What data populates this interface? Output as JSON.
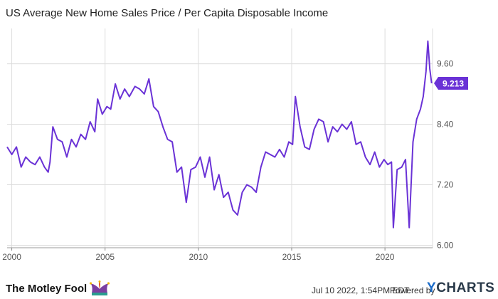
{
  "title": "US Average New Home Sales Price / Per Capita Disposable Income",
  "colors": {
    "line": "#6a32d6",
    "grid": "#dcdcdc",
    "badge": "#6a32d6",
    "brand_y": "#1a6bc9"
  },
  "footer": {
    "brand": "The Motley Fool",
    "brand_icon": "jester-hat-icon",
    "timestamp": "Jul 10 2022, 1:54PM EDT.",
    "powered_by": "Powered by",
    "ycharts_y": "Y",
    "ycharts_rest": "CHARTS"
  },
  "chart_data": {
    "type": "line",
    "title": "US Average New Home Sales Price / Per Capita Disposable Income",
    "xlabel": "",
    "ylabel": "",
    "xlim": [
      1999.75,
      2022.55
    ],
    "ylim": [
      5.95,
      10.3
    ],
    "yticks": [
      6.0,
      7.2,
      8.4,
      9.6
    ],
    "ytick_labels": [
      "6.00",
      "7.20",
      "8.40",
      "9.60"
    ],
    "xticks": [
      2000,
      2005,
      2010,
      2015,
      2020
    ],
    "xtick_labels": [
      "2000",
      "2005",
      "2010",
      "2015",
      "2020"
    ],
    "grid": true,
    "last_value_label": "9.213",
    "series": [
      {
        "points": [
          [
            1999.75,
            7.95
          ],
          [
            2000.0,
            7.8
          ],
          [
            2000.25,
            7.95
          ],
          [
            2000.5,
            7.55
          ],
          [
            2000.75,
            7.75
          ],
          [
            2001.0,
            7.65
          ],
          [
            2001.25,
            7.6
          ],
          [
            2001.5,
            7.75
          ],
          [
            2001.75,
            7.55
          ],
          [
            2001.95,
            7.45
          ],
          [
            2002.05,
            7.65
          ],
          [
            2002.2,
            8.35
          ],
          [
            2002.45,
            8.1
          ],
          [
            2002.7,
            8.05
          ],
          [
            2002.95,
            7.75
          ],
          [
            2003.2,
            8.1
          ],
          [
            2003.45,
            7.95
          ],
          [
            2003.7,
            8.2
          ],
          [
            2003.95,
            8.1
          ],
          [
            2004.2,
            8.45
          ],
          [
            2004.45,
            8.25
          ],
          [
            2004.6,
            8.9
          ],
          [
            2004.85,
            8.6
          ],
          [
            2005.1,
            8.75
          ],
          [
            2005.3,
            8.7
          ],
          [
            2005.55,
            9.2
          ],
          [
            2005.8,
            8.9
          ],
          [
            2006.05,
            9.1
          ],
          [
            2006.3,
            8.95
          ],
          [
            2006.6,
            9.15
          ],
          [
            2006.85,
            9.1
          ],
          [
            2007.1,
            9.0
          ],
          [
            2007.35,
            9.3
          ],
          [
            2007.6,
            8.75
          ],
          [
            2007.85,
            8.65
          ],
          [
            2008.1,
            8.35
          ],
          [
            2008.35,
            8.1
          ],
          [
            2008.6,
            8.05
          ],
          [
            2008.85,
            7.45
          ],
          [
            2009.1,
            7.55
          ],
          [
            2009.35,
            6.85
          ],
          [
            2009.6,
            7.5
          ],
          [
            2009.85,
            7.55
          ],
          [
            2010.1,
            7.75
          ],
          [
            2010.35,
            7.35
          ],
          [
            2010.6,
            7.75
          ],
          [
            2010.85,
            7.1
          ],
          [
            2011.1,
            7.4
          ],
          [
            2011.35,
            6.95
          ],
          [
            2011.6,
            7.05
          ],
          [
            2011.85,
            6.7
          ],
          [
            2012.1,
            6.6
          ],
          [
            2012.35,
            7.05
          ],
          [
            2012.6,
            7.2
          ],
          [
            2012.85,
            7.15
          ],
          [
            2013.1,
            7.05
          ],
          [
            2013.35,
            7.55
          ],
          [
            2013.6,
            7.85
          ],
          [
            2013.85,
            7.8
          ],
          [
            2014.1,
            7.75
          ],
          [
            2014.35,
            7.9
          ],
          [
            2014.6,
            7.75
          ],
          [
            2014.85,
            8.05
          ],
          [
            2015.05,
            8.0
          ],
          [
            2015.2,
            8.95
          ],
          [
            2015.45,
            8.35
          ],
          [
            2015.7,
            7.95
          ],
          [
            2015.95,
            7.9
          ],
          [
            2016.2,
            8.3
          ],
          [
            2016.45,
            8.5
          ],
          [
            2016.7,
            8.45
          ],
          [
            2016.95,
            8.05
          ],
          [
            2017.2,
            8.35
          ],
          [
            2017.45,
            8.25
          ],
          [
            2017.7,
            8.4
          ],
          [
            2017.95,
            8.3
          ],
          [
            2018.2,
            8.45
          ],
          [
            2018.45,
            8.0
          ],
          [
            2018.7,
            8.05
          ],
          [
            2018.95,
            7.75
          ],
          [
            2019.2,
            7.6
          ],
          [
            2019.45,
            7.85
          ],
          [
            2019.7,
            7.55
          ],
          [
            2019.95,
            7.7
          ],
          [
            2020.15,
            7.6
          ],
          [
            2020.35,
            7.65
          ],
          [
            2020.45,
            6.35
          ],
          [
            2020.65,
            7.5
          ],
          [
            2020.9,
            7.55
          ],
          [
            2021.1,
            7.7
          ],
          [
            2021.3,
            6.35
          ],
          [
            2021.5,
            8.05
          ],
          [
            2021.7,
            8.5
          ],
          [
            2021.9,
            8.7
          ],
          [
            2022.05,
            8.95
          ],
          [
            2022.2,
            9.45
          ],
          [
            2022.3,
            10.05
          ],
          [
            2022.4,
            9.5
          ],
          [
            2022.5,
            9.213
          ]
        ]
      }
    ]
  }
}
